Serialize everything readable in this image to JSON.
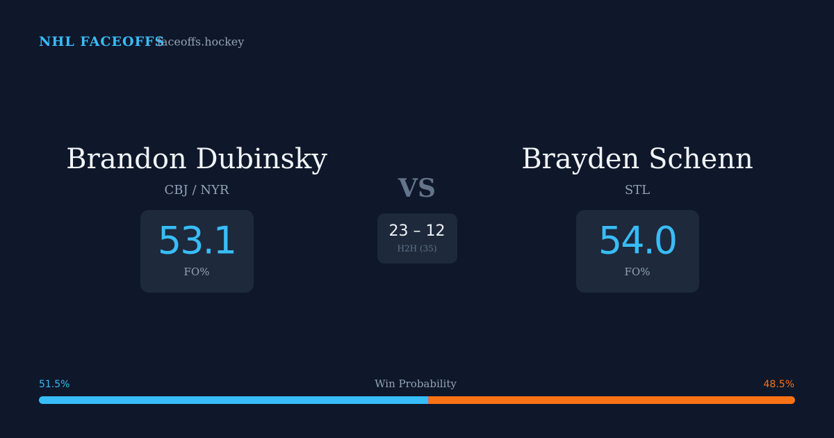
{
  "header": {
    "brand": "NHL FACEOFFS",
    "site": "faceoffs.hockey"
  },
  "players": [
    {
      "name": "Brandon Dubinsky",
      "team": "CBJ / NYR",
      "fo_value": "53.1",
      "fo_label": "FO%"
    },
    {
      "name": "Brayden Schenn",
      "team": "STL",
      "fo_value": "54.0",
      "fo_label": "FO%"
    }
  ],
  "vs": "VS",
  "h2h": {
    "score": "23 – 12",
    "label": "H2H (35)"
  },
  "win_probability": {
    "label": "Win Probability",
    "values": [
      51.5,
      48.5
    ],
    "value_labels": [
      "51.5%",
      "48.5%"
    ],
    "colors": [
      "#38bdf8",
      "#f97316"
    ]
  }
}
